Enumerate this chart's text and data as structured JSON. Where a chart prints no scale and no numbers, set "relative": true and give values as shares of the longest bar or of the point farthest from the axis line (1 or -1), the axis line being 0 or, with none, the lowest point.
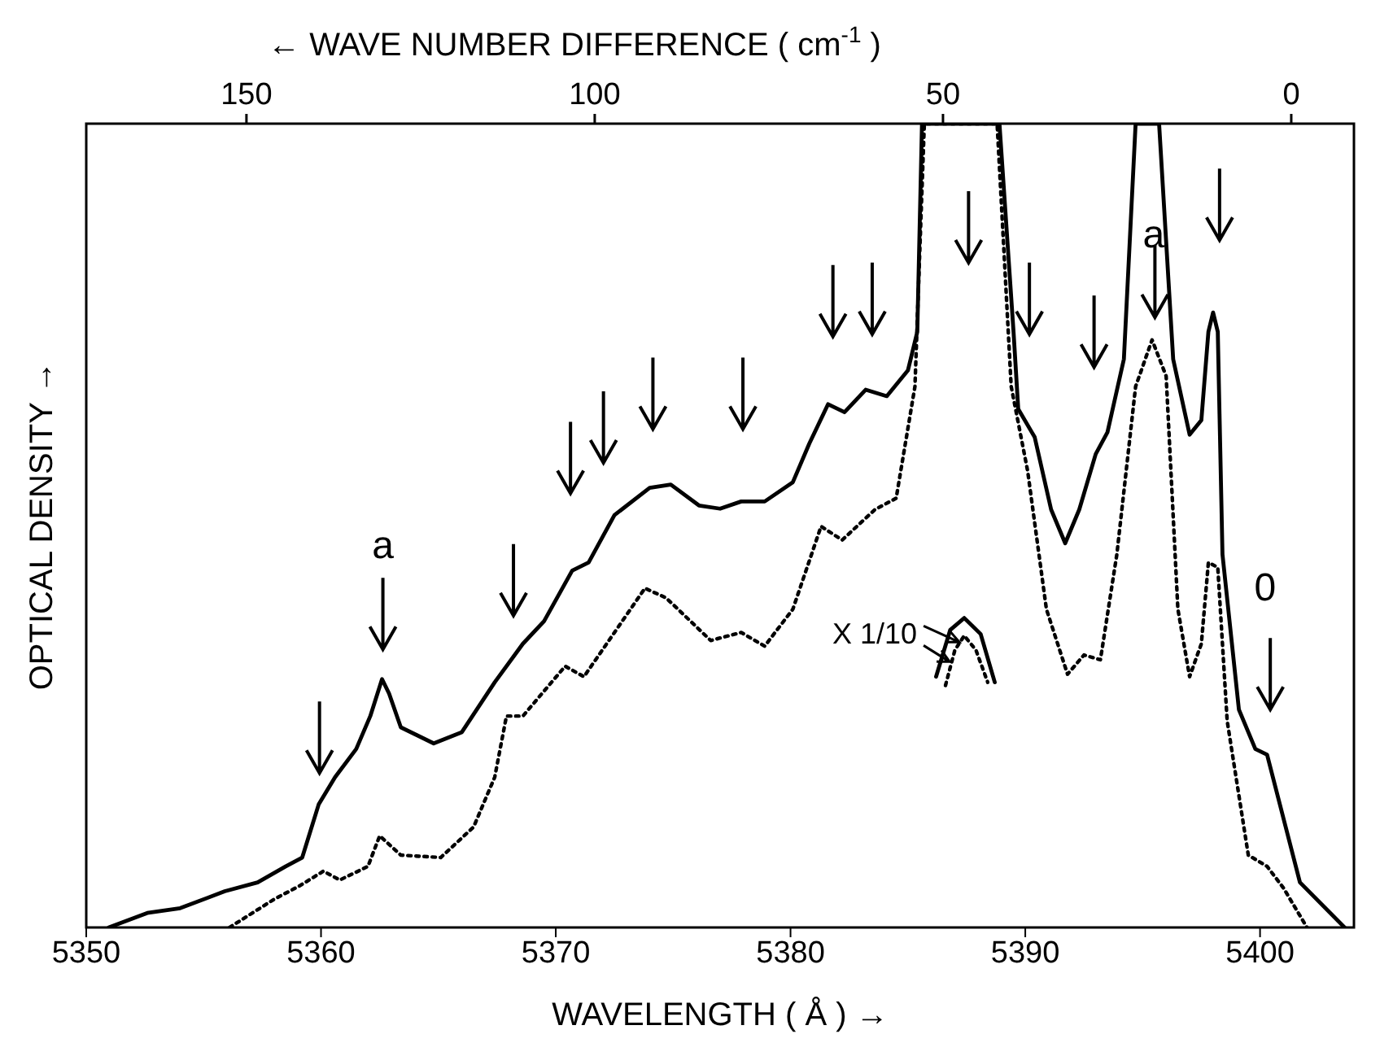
{
  "chart_data": {
    "type": "line",
    "relative": true,
    "xlabel": "WAVELENGTH ( Å ) →",
    "ylabel": "OPTICAL DENSITY →",
    "x2label": "← WAVE NUMBER DIFFERENCE ( cm$^{-1}$ )",
    "xlim": [
      5350,
      5404
    ],
    "xticks": [
      5350,
      5360,
      5370,
      5380,
      5390,
      5400
    ],
    "x2lim": [
      173,
      -9
    ],
    "x2ticks": [
      150,
      100,
      50,
      0
    ],
    "marker": "none",
    "series": [
      {
        "color": "#000000",
        "line_style": "solid",
        "x": [
          5350.96,
          5352.6,
          5354.0,
          5355.9,
          5357.3,
          5358.5,
          5359.2,
          5359.9,
          5360.6,
          5361.5,
          5362.1,
          5362.6,
          5362.9,
          5363.4,
          5364.8,
          5366.0,
          5367.4,
          5368.6,
          5369.5,
          5370.7,
          5371.4,
          5372.5,
          5374.0,
          5374.9,
          5376.1,
          5377.0,
          5377.9,
          5378.9,
          5380.1,
          5380.8,
          5381.6,
          5382.3,
          5383.2,
          5384.1,
          5385.0,
          5385.4,
          5385.6,
          5388.9,
          5389.5,
          5389.7,
          5390.4,
          5391.1,
          5391.7,
          5392.3,
          5393.0,
          5393.5,
          5394.2,
          5394.7,
          5395.7,
          5396.3,
          5397.0,
          5397.5,
          5397.8,
          5398.0,
          5398.2,
          5398.4,
          5399.1,
          5399.8,
          5400.3,
          5401.7,
          5403.6
        ],
        "values": [
          0.0,
          0.018,
          0.024,
          0.045,
          0.056,
          0.076,
          0.087,
          0.153,
          0.187,
          0.222,
          0.263,
          0.309,
          0.291,
          0.249,
          0.229,
          0.243,
          0.305,
          0.353,
          0.381,
          0.444,
          0.454,
          0.513,
          0.547,
          0.551,
          0.525,
          0.521,
          0.53,
          0.53,
          0.554,
          0.602,
          0.651,
          0.641,
          0.669,
          0.661,
          0.693,
          0.741,
          1.0,
          1.0,
          0.741,
          0.645,
          0.61,
          0.52,
          0.478,
          0.52,
          0.589,
          0.616,
          0.707,
          1.0,
          1.0,
          0.707,
          0.613,
          0.631,
          0.741,
          0.765,
          0.741,
          0.464,
          0.271,
          0.222,
          0.215,
          0.056,
          0.0
        ]
      },
      {
        "color": "#000000",
        "line_style": "dotted",
        "x": [
          5356.1,
          5358.0,
          5359.1,
          5360.1,
          5360.8,
          5362.0,
          5362.5,
          5363.4,
          5365.1,
          5366.5,
          5367.4,
          5367.9,
          5368.6,
          5370.4,
          5371.2,
          5372.5,
          5373.8,
          5374.7,
          5376.6,
          5377.9,
          5378.9,
          5380.1,
          5381.3,
          5382.2,
          5383.6,
          5384.5,
          5385.3,
          5385.7,
          5388.8,
          5389.4,
          5390.1,
          5390.9,
          5391.8,
          5392.5,
          5393.2,
          5393.9,
          5394.7,
          5395.4,
          5396.0,
          5396.5,
          5397.0,
          5397.5,
          5397.8,
          5398.2,
          5398.6,
          5399.5,
          5400.3,
          5401.0,
          5402.0
        ],
        "values": [
          0.0,
          0.035,
          0.052,
          0.07,
          0.059,
          0.076,
          0.114,
          0.09,
          0.087,
          0.125,
          0.187,
          0.263,
          0.263,
          0.325,
          0.312,
          0.367,
          0.422,
          0.41,
          0.357,
          0.367,
          0.35,
          0.396,
          0.499,
          0.482,
          0.52,
          0.534,
          0.673,
          1.0,
          1.0,
          0.673,
          0.568,
          0.396,
          0.315,
          0.339,
          0.333,
          0.464,
          0.673,
          0.731,
          0.686,
          0.396,
          0.312,
          0.353,
          0.454,
          0.448,
          0.257,
          0.09,
          0.076,
          0.049,
          0.0
        ]
      },
      {
        "color": "#000000",
        "line_style": "solid",
        "x": [
          5386.2,
          5386.8,
          5387.4,
          5388.1,
          5388.7
        ],
        "values": [
          0.312,
          0.37,
          0.385,
          0.365,
          0.305
        ]
      },
      {
        "color": "#000000",
        "line_style": "dotted",
        "x": [
          5386.6,
          5387.0,
          5387.4,
          5387.9,
          5388.4
        ],
        "values": [
          0.301,
          0.345,
          0.363,
          0.345,
          0.305
        ]
      }
    ],
    "annotations": [
      "a",
      "a",
      "0",
      "X 1/10"
    ]
  }
}
